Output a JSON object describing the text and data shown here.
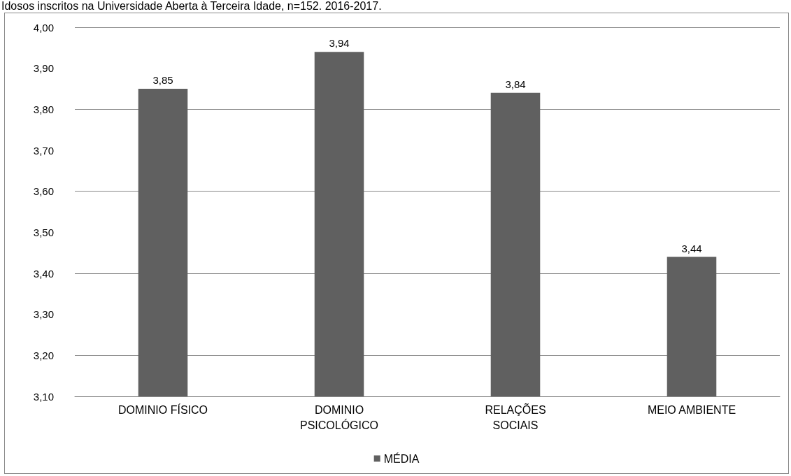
{
  "chart_data": {
    "type": "bar",
    "title": "Idosos inscritos na Universidade Aberta à Terceira Idade, n=152. 2016-2017.",
    "categories": [
      "DOMINIO FÍSICO",
      "DOMINIO\nPSICOLÓGICO",
      "RELAÇÕES\nSOCIAIS",
      "MEIO AMBIENTE"
    ],
    "series": [
      {
        "name": "MÉDIA",
        "color": "#606060",
        "values": [
          3.85,
          3.94,
          3.84,
          3.44
        ],
        "value_labels": [
          "3,85",
          "3,94",
          "3,84",
          "3,44"
        ]
      }
    ],
    "ylim": [
      3.1,
      4.0
    ],
    "yticks": [
      {
        "value": 3.1,
        "label": "3,10"
      },
      {
        "value": 3.2,
        "label": "3,20"
      },
      {
        "value": 3.3,
        "label": "3,30"
      },
      {
        "value": 3.4,
        "label": "3,40"
      },
      {
        "value": 3.5,
        "label": "3,50"
      },
      {
        "value": 3.6,
        "label": "3,60"
      },
      {
        "value": 3.7,
        "label": "3,70"
      },
      {
        "value": 3.8,
        "label": "3,80"
      },
      {
        "value": 3.9,
        "label": "3,90"
      },
      {
        "value": 4.0,
        "label": "4,00"
      }
    ],
    "grid": "y",
    "legend": "bottom"
  }
}
